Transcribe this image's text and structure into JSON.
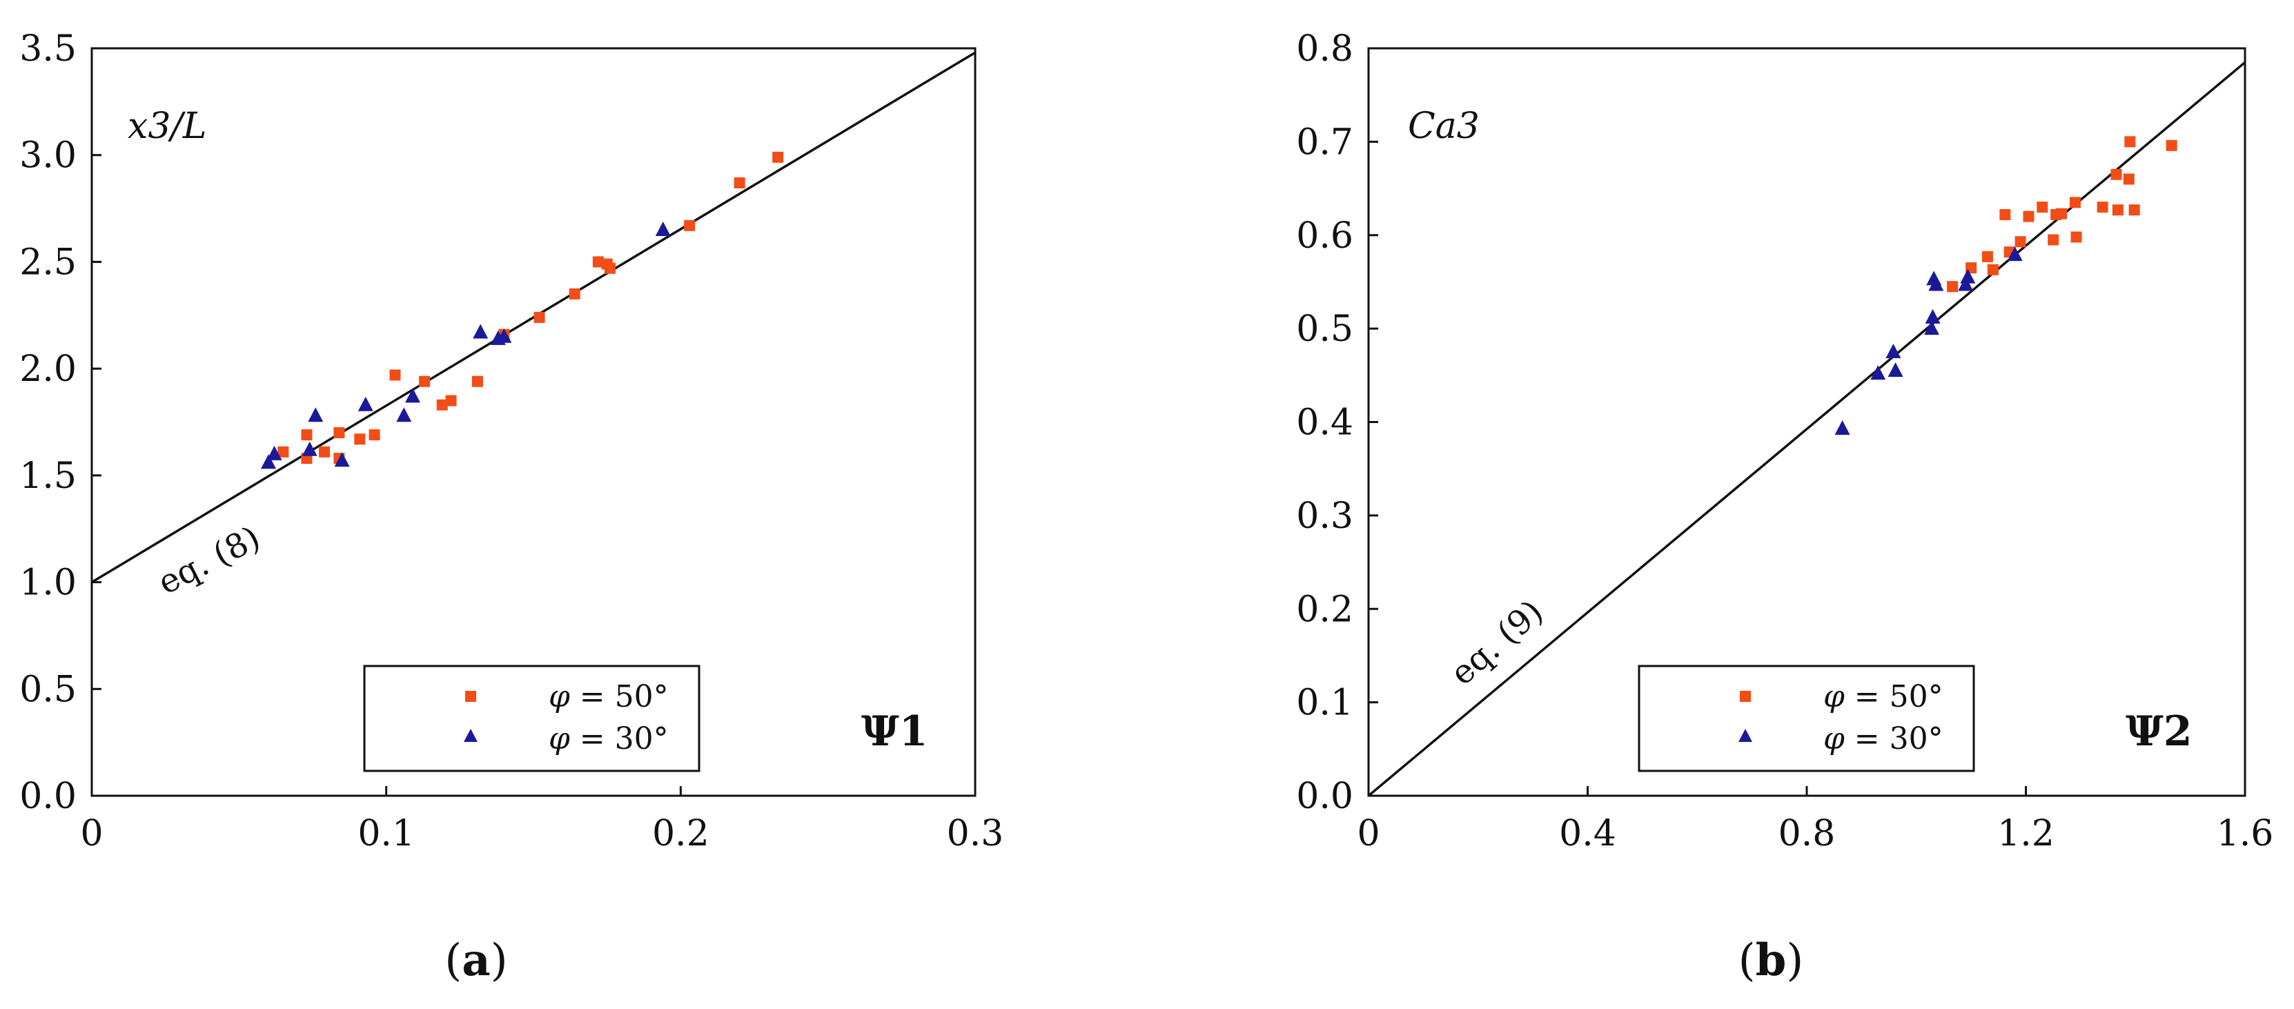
{
  "colors": {
    "series50": "#f24d16",
    "series30": "#1a1a99",
    "axis": "#111111"
  },
  "chart_data": [
    {
      "type": "scatter",
      "panel_label": "(a)",
      "ylabel": "x3/L",
      "xlabel": "Ψ1",
      "xlim": [
        0,
        0.3
      ],
      "ylim": [
        0,
        3.5
      ],
      "x_ticks": [
        "0",
        "0.1",
        "0.2",
        "0.3"
      ],
      "y_ticks": [
        "0.0",
        "0.5",
        "1.0",
        "1.5",
        "2.0",
        "2.5",
        "3.0",
        "3.5"
      ],
      "grid": false,
      "legend_position": "bottom-center",
      "fit_line": {
        "label": "eq. (8)",
        "x": [
          0,
          0.3
        ],
        "y": [
          1.0,
          3.48
        ]
      },
      "series": [
        {
          "name": "φ = 50°",
          "marker": "square",
          "color": "#f24d16",
          "points": [
            [
              0.065,
              1.61
            ],
            [
              0.073,
              1.69
            ],
            [
              0.073,
              1.58
            ],
            [
              0.079,
              1.61
            ],
            [
              0.084,
              1.7
            ],
            [
              0.084,
              1.58
            ],
            [
              0.091,
              1.67
            ],
            [
              0.096,
              1.69
            ],
            [
              0.103,
              1.97
            ],
            [
              0.113,
              1.94
            ],
            [
              0.119,
              1.83
            ],
            [
              0.122,
              1.85
            ],
            [
              0.131,
              1.94
            ],
            [
              0.14,
              2.16
            ],
            [
              0.152,
              2.24
            ],
            [
              0.164,
              2.35
            ],
            [
              0.172,
              2.5
            ],
            [
              0.175,
              2.49
            ],
            [
              0.176,
              2.47
            ],
            [
              0.203,
              2.67
            ],
            [
              0.22,
              2.87
            ],
            [
              0.233,
              2.99
            ]
          ]
        },
        {
          "name": "φ = 30°",
          "marker": "triangle",
          "color": "#1a1a99",
          "points": [
            [
              0.06,
              1.56
            ],
            [
              0.062,
              1.6
            ],
            [
              0.074,
              1.62
            ],
            [
              0.076,
              1.78
            ],
            [
              0.085,
              1.57
            ],
            [
              0.093,
              1.83
            ],
            [
              0.106,
              1.78
            ],
            [
              0.109,
              1.87
            ],
            [
              0.132,
              2.17
            ],
            [
              0.138,
              2.14
            ],
            [
              0.14,
              2.15
            ],
            [
              0.194,
              2.65
            ]
          ]
        }
      ]
    },
    {
      "type": "scatter",
      "panel_label": "(b)",
      "ylabel": "Ca3",
      "xlabel": "Ψ2",
      "xlim": [
        0,
        1.6
      ],
      "ylim": [
        0,
        0.8
      ],
      "x_ticks": [
        "0",
        "0.4",
        "0.8",
        "1.2",
        "1.6"
      ],
      "y_ticks": [
        "0.0",
        "0.1",
        "0.2",
        "0.3",
        "0.4",
        "0.5",
        "0.6",
        "0.7",
        "0.8"
      ],
      "grid": false,
      "legend_position": "bottom-center",
      "fit_line": {
        "label": "eq. (9)",
        "x": [
          0,
          1.6
        ],
        "y": [
          0,
          0.785
        ]
      },
      "series": [
        {
          "name": "φ = 50°",
          "marker": "square",
          "color": "#f24d16",
          "points": [
            [
              1.066,
              0.545
            ],
            [
              1.1,
              0.565
            ],
            [
              1.13,
              0.577
            ],
            [
              1.14,
              0.563
            ],
            [
              1.162,
              0.622
            ],
            [
              1.17,
              0.582
            ],
            [
              1.19,
              0.593
            ],
            [
              1.205,
              0.62
            ],
            [
              1.23,
              0.63
            ],
            [
              1.25,
              0.595
            ],
            [
              1.255,
              0.622
            ],
            [
              1.265,
              0.623
            ],
            [
              1.29,
              0.635
            ],
            [
              1.292,
              0.598
            ],
            [
              1.34,
              0.63
            ],
            [
              1.365,
              0.665
            ],
            [
              1.368,
              0.627
            ],
            [
              1.388,
              0.66
            ],
            [
              1.39,
              0.7
            ],
            [
              1.398,
              0.627
            ],
            [
              1.466,
              0.696
            ]
          ]
        },
        {
          "name": "φ = 30°",
          "marker": "triangle",
          "color": "#1a1a99",
          "points": [
            [
              0.865,
              0.393
            ],
            [
              0.93,
              0.452
            ],
            [
              0.958,
              0.475
            ],
            [
              0.962,
              0.455
            ],
            [
              1.028,
              0.5
            ],
            [
              1.03,
              0.512
            ],
            [
              1.032,
              0.553
            ],
            [
              1.036,
              0.547
            ],
            [
              1.09,
              0.547
            ],
            [
              1.094,
              0.555
            ],
            [
              1.18,
              0.579
            ]
          ]
        }
      ]
    }
  ]
}
